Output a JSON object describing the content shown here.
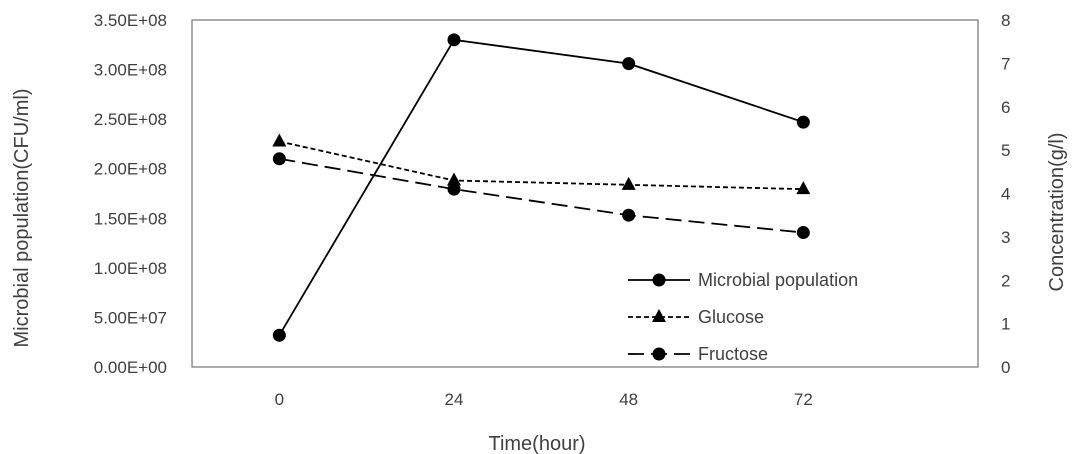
{
  "chart_data": {
    "type": "line",
    "xlabel": "Time(hour)",
    "ylabel_left": "Microbial population(CFU/ml)",
    "ylabel_right": "Concentration(g/l)",
    "categories": [
      "0",
      "24",
      "48",
      "72"
    ],
    "ylim_left": [
      0,
      350000000
    ],
    "yticks_left": [
      "0.00E+00",
      "5.00E+07",
      "1.00E+08",
      "1.50E+08",
      "2.00E+08",
      "2.50E+08",
      "3.00E+08",
      "3.50E+08"
    ],
    "ylim_right": [
      0,
      8
    ],
    "yticks_right": [
      "0",
      "1",
      "2",
      "3",
      "4",
      "5",
      "6",
      "7",
      "8"
    ],
    "grid": false,
    "legend_position": "bottom-right",
    "series": [
      {
        "name": "Microbial population",
        "axis": "left",
        "marker": "circle",
        "line": "solid",
        "values": [
          32000000,
          330000000,
          306000000,
          247000000
        ]
      },
      {
        "name": "Glucose",
        "axis": "right",
        "marker": "triangle",
        "line": "dotted",
        "values": [
          5.2,
          4.3,
          4.2,
          4.1
        ]
      },
      {
        "name": "Fructose",
        "axis": "right",
        "marker": "circle",
        "line": "dashed",
        "values": [
          4.8,
          4.1,
          3.5,
          3.1
        ]
      }
    ],
    "colors": {
      "series": "#000000",
      "text": "#404040",
      "frame": "#595959"
    }
  }
}
